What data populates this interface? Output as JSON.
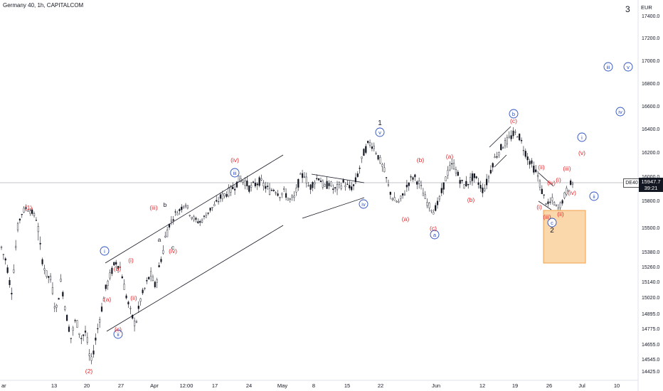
{
  "header": {
    "title": "Germany 40, 1h, CAPITALCOM",
    "corner_label": "3"
  },
  "price_marker": {
    "symbol": "DE40",
    "price": "15947.7",
    "countdown": "39:21"
  },
  "colors": {
    "background": "#ffffff",
    "candle": "#131722",
    "wave_label_red": "#e8262b",
    "wave_label_blue": "#2a4fbf",
    "channel_line": "#131722",
    "target_zone_fill": "#fbd8ab",
    "target_zone_stroke": "#f0a04b"
  },
  "chart_data": {
    "type": "candlestick",
    "currency": "EUR",
    "y_axis": {
      "ticks": [
        "17400.0",
        "17200.0",
        "17000.0",
        "16800.0",
        "16600.0",
        "16400.0",
        "16200.0",
        "16000.0",
        "15800.0",
        "15500.0",
        "15380.0",
        "15260.0",
        "15140.0",
        "15020.0",
        "14895.0",
        "14775.0",
        "14655.0",
        "14545.0",
        "14425.0"
      ]
    },
    "x_axis": {
      "ticks": [
        "ar",
        "13",
        "20",
        "27",
        "Apr",
        "12:00",
        "17",
        "24",
        "May",
        "8",
        "15",
        "22",
        "Jun",
        "12",
        "19",
        "26",
        "Jul",
        "10"
      ]
    },
    "price_path": [
      [
        0,
        15400
      ],
      [
        1,
        15300
      ],
      [
        2,
        15050
      ],
      [
        3,
        15450
      ],
      [
        4,
        15650
      ],
      [
        5,
        15720
      ],
      [
        6,
        15680
      ],
      [
        7,
        15600
      ],
      [
        8,
        15350
      ],
      [
        9,
        15200
      ],
      [
        10,
        15150
      ],
      [
        11,
        14900
      ],
      [
        12,
        15150
      ],
      [
        13,
        14900
      ],
      [
        14,
        14700
      ],
      [
        15,
        14850
      ],
      [
        16,
        14700
      ],
      [
        17,
        14750
      ],
      [
        18,
        14500
      ],
      [
        19,
        14700
      ],
      [
        20,
        14900
      ],
      [
        21,
        15080
      ],
      [
        22,
        15200
      ],
      [
        23,
        15300
      ],
      [
        24,
        15250
      ],
      [
        25,
        15050
      ],
      [
        26,
        14900
      ],
      [
        27,
        14800
      ],
      [
        28,
        15000
      ],
      [
        29,
        15100
      ],
      [
        30,
        15200
      ],
      [
        31,
        15100
      ],
      [
        32,
        15300
      ],
      [
        33,
        15450
      ],
      [
        34,
        15550
      ],
      [
        35,
        15650
      ],
      [
        36,
        15700
      ],
      [
        37,
        15780
      ],
      [
        38,
        15650
      ],
      [
        39,
        15580
      ],
      [
        40,
        15560
      ],
      [
        41,
        15620
      ],
      [
        42,
        15700
      ],
      [
        43,
        15750
      ],
      [
        44,
        15820
      ],
      [
        45,
        15850
      ],
      [
        46,
        15880
      ],
      [
        47,
        15920
      ],
      [
        48,
        15980
      ],
      [
        49,
        15960
      ],
      [
        50,
        15900
      ],
      [
        51,
        15930
      ],
      [
        52,
        15960
      ],
      [
        53,
        15920
      ],
      [
        54,
        15880
      ],
      [
        55,
        15900
      ],
      [
        56,
        15850
      ],
      [
        57,
        15870
      ],
      [
        58,
        15800
      ],
      [
        59,
        15820
      ],
      [
        60,
        15980
      ],
      [
        61,
        16020
      ],
      [
        62,
        15900
      ],
      [
        63,
        15960
      ],
      [
        64,
        16000
      ],
      [
        65,
        15900
      ],
      [
        66,
        15950
      ],
      [
        67,
        15880
      ],
      [
        68,
        15920
      ],
      [
        69,
        15950
      ],
      [
        70,
        15900
      ],
      [
        71,
        15920
      ],
      [
        72,
        16050
      ],
      [
        73,
        16200
      ],
      [
        74,
        16280
      ],
      [
        75,
        16250
      ],
      [
        76,
        16150
      ],
      [
        77,
        16050
      ],
      [
        78,
        15900
      ],
      [
        79,
        15800
      ],
      [
        80,
        15780
      ],
      [
        81,
        15850
      ],
      [
        82,
        15950
      ],
      [
        83,
        16000
      ],
      [
        84,
        15950
      ],
      [
        85,
        15850
      ],
      [
        86,
        15750
      ],
      [
        87,
        15680
      ],
      [
        88,
        15780
      ],
      [
        89,
        15920
      ],
      [
        90,
        16050
      ],
      [
        91,
        16100
      ],
      [
        92,
        16000
      ],
      [
        93,
        15920
      ],
      [
        94,
        15950
      ],
      [
        95,
        16000
      ],
      [
        96,
        15950
      ],
      [
        97,
        15880
      ],
      [
        98,
        15980
      ],
      [
        99,
        16120
      ],
      [
        100,
        16200
      ],
      [
        101,
        16260
      ],
      [
        102,
        16300
      ],
      [
        103,
        16350
      ],
      [
        104,
        16360
      ],
      [
        105,
        16250
      ],
      [
        106,
        16150
      ],
      [
        107,
        16080
      ],
      [
        108,
        16000
      ],
      [
        109,
        15850
      ],
      [
        110,
        15750
      ],
      [
        111,
        15800
      ],
      [
        112,
        15700
      ],
      [
        113,
        15800
      ],
      [
        114,
        15900
      ],
      [
        115,
        15950
      ]
    ],
    "wave_labels": [
      {
        "text": "(1)",
        "color": "red"
      },
      {
        "text": "(2)",
        "color": "red"
      },
      {
        "text": "i",
        "color": "blue",
        "circled": true
      },
      {
        "text": "ii",
        "color": "blue",
        "circled": true
      },
      {
        "text": "iii",
        "color": "blue",
        "circled": true
      },
      {
        "text": "iv",
        "color": "blue",
        "circled": true
      },
      {
        "text": "v",
        "color": "blue",
        "circled": true
      },
      {
        "text": "a",
        "color": "blue",
        "circled": true
      },
      {
        "text": "b",
        "color": "blue",
        "circled": true
      },
      {
        "text": "c",
        "color": "blue",
        "circled": true
      },
      {
        "text": "(iii)",
        "color": "red"
      },
      {
        "text": "(iv)",
        "color": "red"
      },
      {
        "text": "(v)",
        "color": "red"
      },
      {
        "text": "(i)",
        "color": "red"
      },
      {
        "text": "(ii)",
        "color": "red"
      },
      {
        "text": "(a)",
        "color": "red"
      },
      {
        "text": "(b)",
        "color": "red"
      },
      {
        "text": "(c)",
        "color": "red"
      },
      {
        "text": "a",
        "color": "black"
      },
      {
        "text": "b",
        "color": "black"
      },
      {
        "text": "c",
        "color": "black"
      },
      {
        "text": "1",
        "color": "black"
      },
      {
        "text": "2",
        "color": "black"
      }
    ]
  }
}
